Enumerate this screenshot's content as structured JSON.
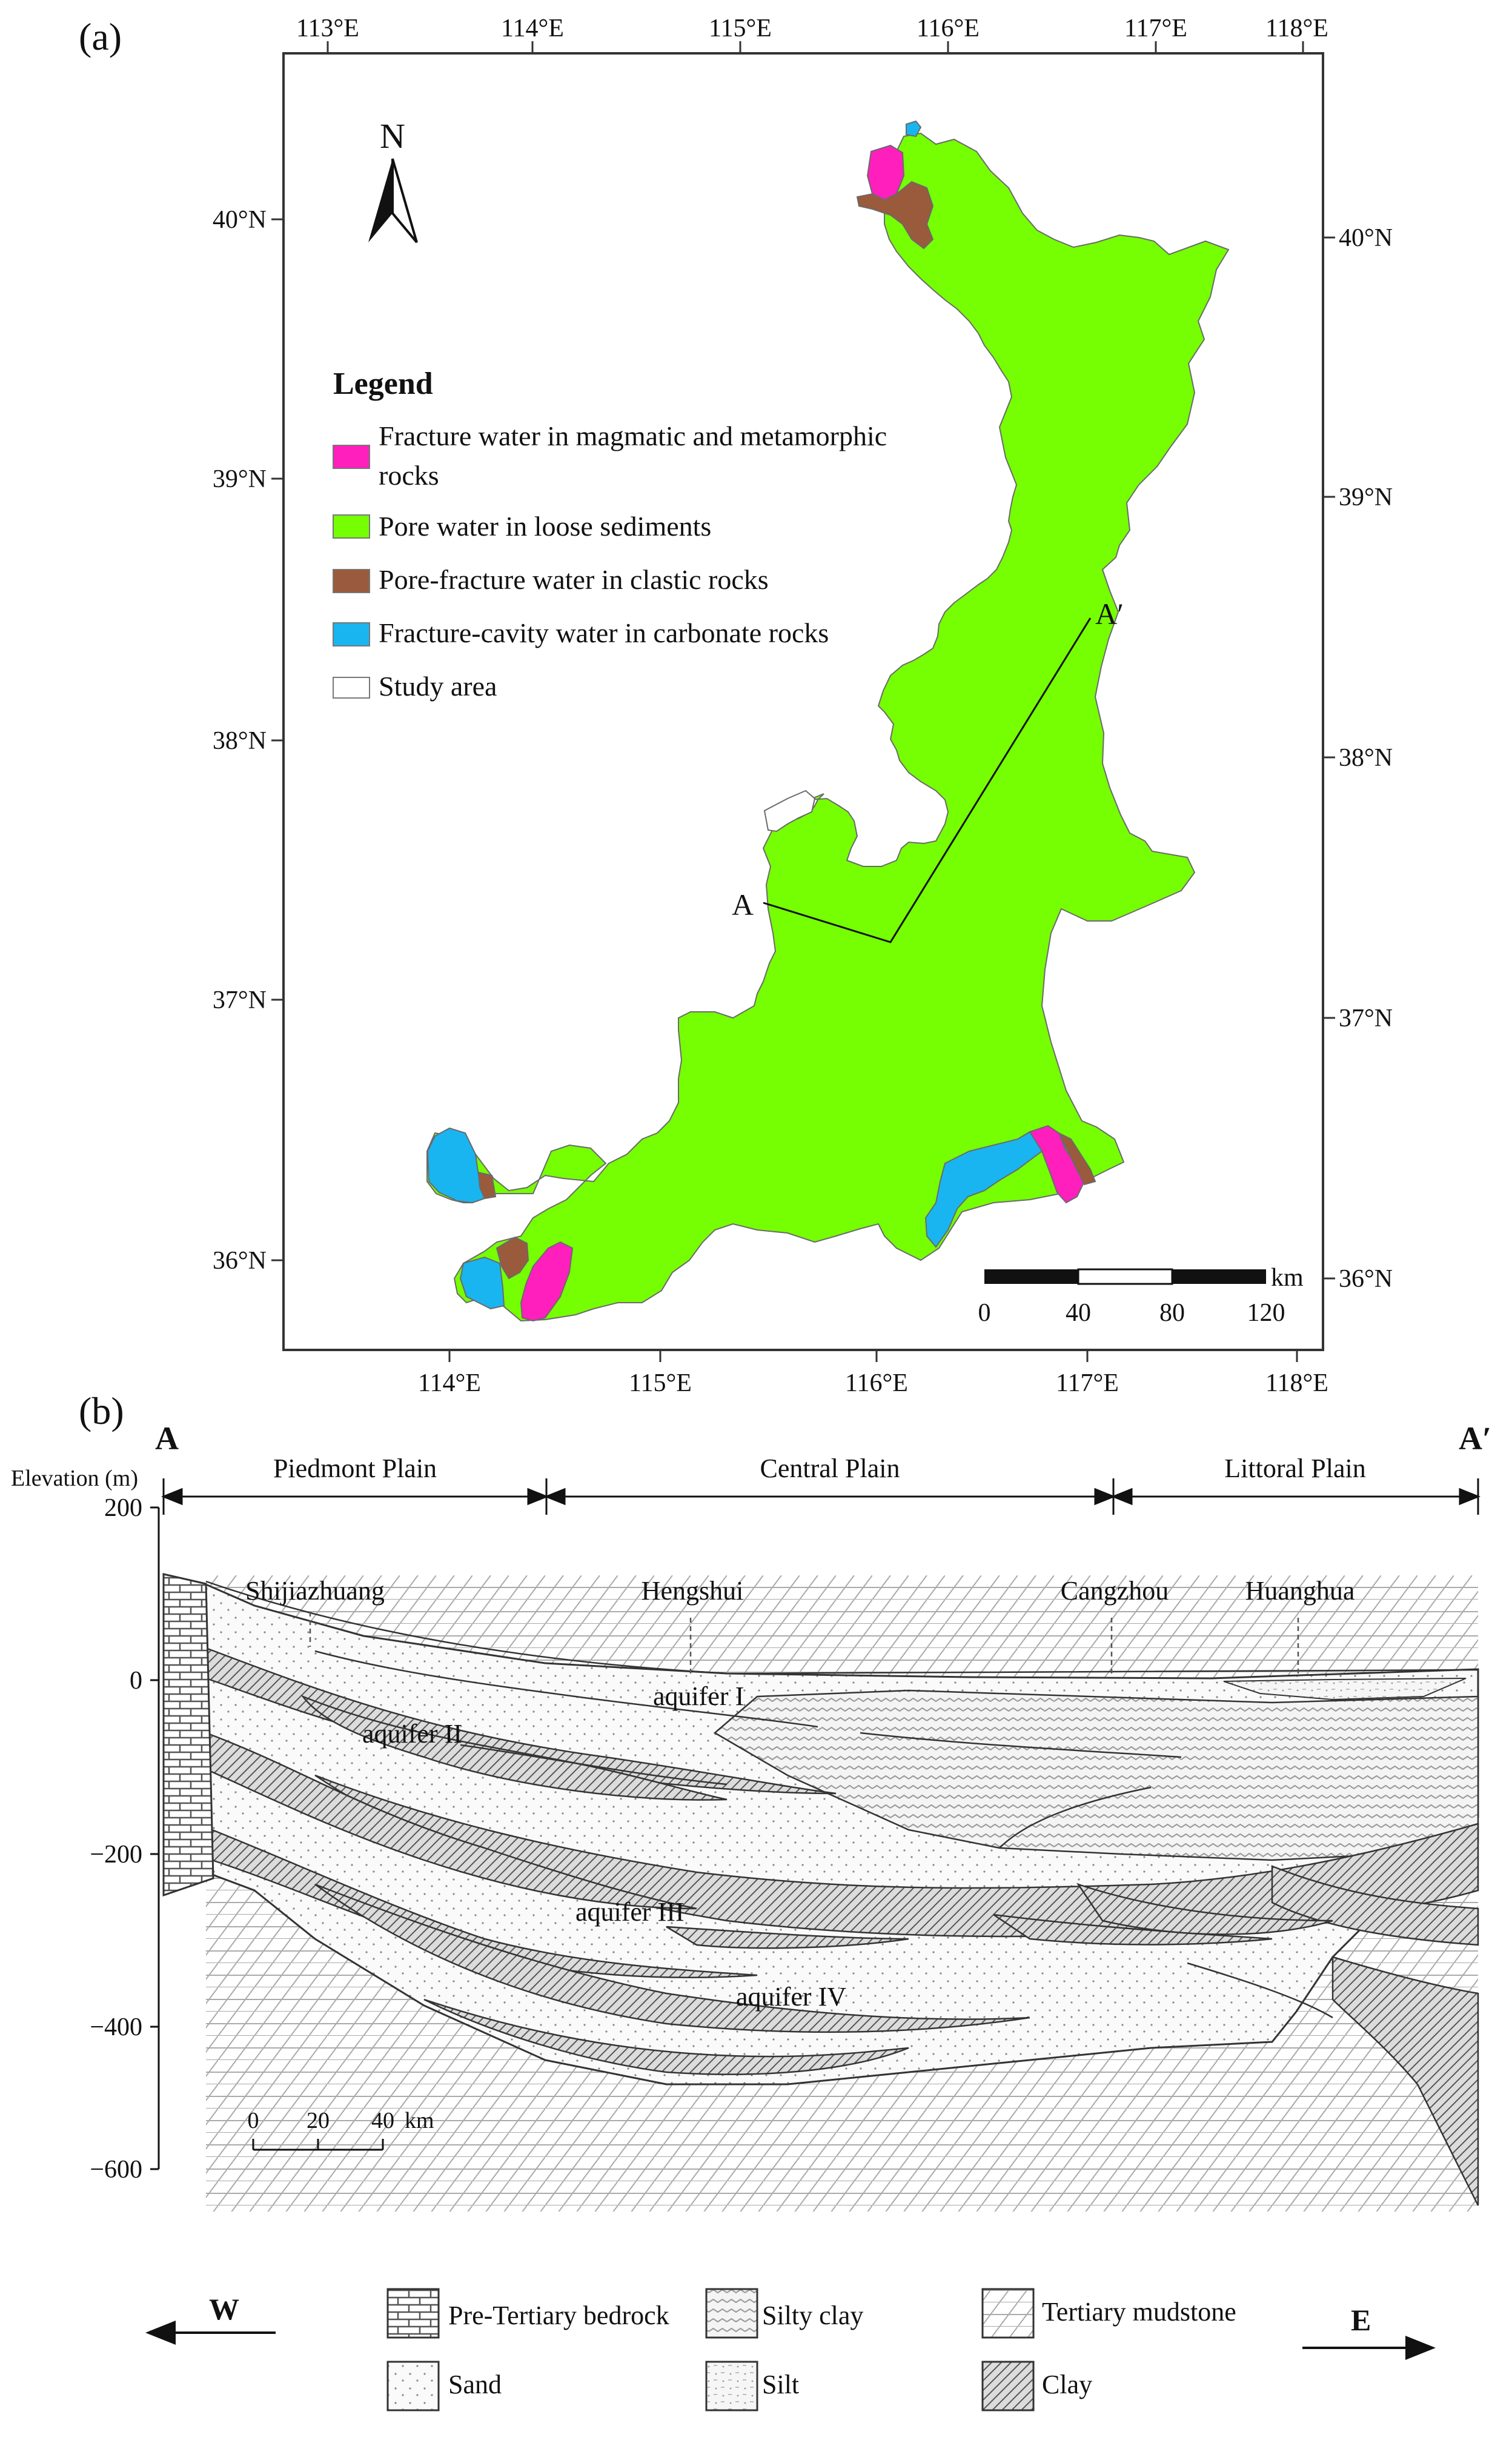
{
  "panel_a": {
    "label": "(a)",
    "lon_ticks": [
      "113°E",
      "114°E",
      "115°E",
      "116°E",
      "117°E",
      "118°E"
    ],
    "lat_ticks": [
      "40°N",
      "39°N",
      "38°N",
      "37°N",
      "36°N"
    ],
    "north_label": "N",
    "legend": {
      "title": "Legend",
      "items": [
        {
          "text": "Fracture water in magmatic and metamorphic",
          "text2": "rocks",
          "color": "#ff1fbd"
        },
        {
          "text": "Pore water in loose sediments",
          "color": "#76ff03"
        },
        {
          "text": "Pore-fracture water in clastic rocks",
          "color": "#9a5a3c"
        },
        {
          "text": "Fracture-cavity water in carbonate rocks",
          "color": "#19b5f0"
        },
        {
          "text": "Study area",
          "color": "#ffffff"
        }
      ]
    },
    "section_start": "A",
    "section_end": "A′",
    "scale": {
      "unit": "km",
      "labels": [
        "0",
        "40",
        "80",
        "120"
      ]
    }
  },
  "panel_b": {
    "label": "(b)",
    "start": "A",
    "end": "A′",
    "y_axis_label": "Elevation (m)",
    "y_ticks": [
      "200",
      "0",
      "−200",
      "−400",
      "−600"
    ],
    "zones": [
      "Piedmont Plain",
      "Central Plain",
      "Littoral Plain"
    ],
    "cities": [
      "Shijiazhuang",
      "Hengshui",
      "Cangzhou",
      "Huanghua"
    ],
    "aquifers": [
      "aquifer I",
      "aquifer II",
      "aquifer III",
      "aquifer IV"
    ],
    "scale": {
      "labels": [
        "0",
        "20",
        "40"
      ],
      "unit": "km"
    },
    "west": "W",
    "east": "E",
    "legend": [
      "Pre-Tertiary bedrock",
      "Silty clay",
      "Tertiary mudstone",
      "Sand",
      "Silt",
      "Clay"
    ]
  }
}
